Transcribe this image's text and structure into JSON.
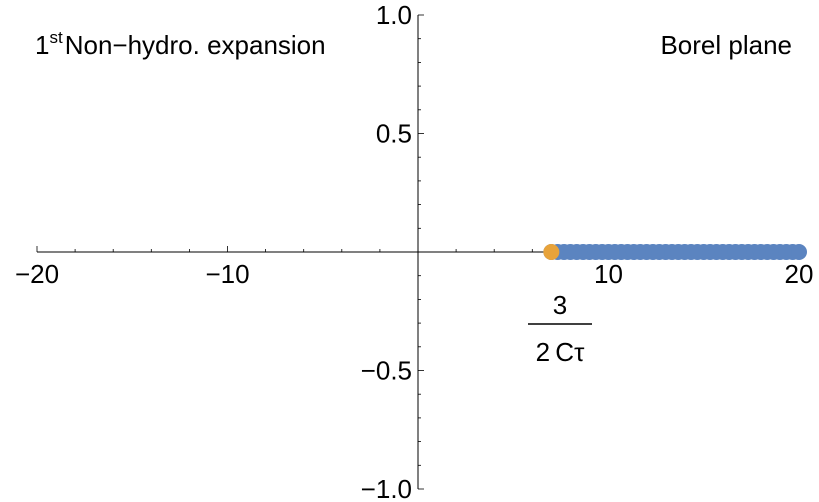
{
  "chart_data": {
    "type": "scatter",
    "title": "",
    "annotations": {
      "top_left": {
        "base": "1",
        "sup": "st",
        "text": "Non−hydro. expansion"
      },
      "top_right": "Borel plane",
      "fraction": {
        "numerator": "3",
        "denominator": "2 Cτ"
      }
    },
    "xlabel": "",
    "ylabel": "",
    "xlim": [
      -20,
      20
    ],
    "ylim": [
      -1.0,
      1.0
    ],
    "x_ticks": [
      {
        "value": -20,
        "label": "−20"
      },
      {
        "value": -10,
        "label": "−10"
      },
      {
        "value": 10,
        "label": "10"
      },
      {
        "value": 20,
        "label": "20"
      }
    ],
    "y_ticks": [
      {
        "value": 1.0,
        "label": "1.0"
      },
      {
        "value": 0.5,
        "label": "0.5"
      },
      {
        "value": -0.5,
        "label": "−0.5"
      },
      {
        "value": -1.0,
        "label": "−1.0"
      }
    ],
    "grid": false,
    "series": [
      {
        "color": "#5b84c0",
        "x_start": 7.0,
        "x_end": 20.0,
        "count": 40,
        "y": 0
      },
      {
        "color": "#e8a33a",
        "points": [
          {
            "x": 7.0,
            "y": 0
          }
        ]
      }
    ]
  }
}
